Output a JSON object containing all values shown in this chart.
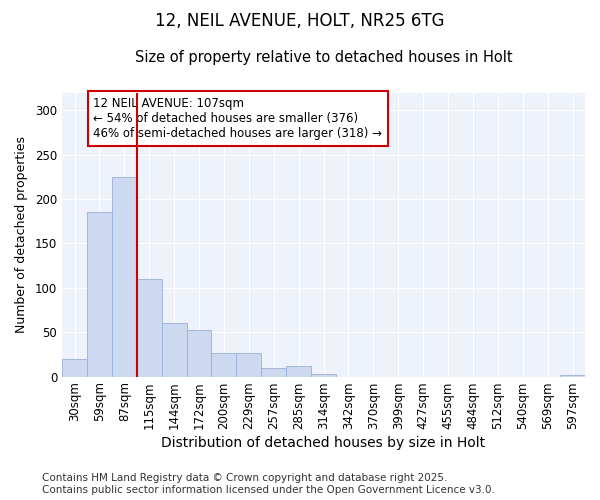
{
  "title1": "12, NEIL AVENUE, HOLT, NR25 6TG",
  "title2": "Size of property relative to detached houses in Holt",
  "xlabel": "Distribution of detached houses by size in Holt",
  "ylabel": "Number of detached properties",
  "categories": [
    "30sqm",
    "59sqm",
    "87sqm",
    "115sqm",
    "144sqm",
    "172sqm",
    "200sqm",
    "229sqm",
    "257sqm",
    "285sqm",
    "314sqm",
    "342sqm",
    "370sqm",
    "399sqm",
    "427sqm",
    "455sqm",
    "484sqm",
    "512sqm",
    "540sqm",
    "569sqm",
    "597sqm"
  ],
  "values": [
    20,
    185,
    225,
    110,
    60,
    52,
    27,
    27,
    10,
    12,
    3,
    0,
    0,
    0,
    0,
    0,
    0,
    0,
    0,
    0,
    2
  ],
  "bar_color": "#ccd9f0",
  "bar_edgecolor": "#9ab0d8",
  "vline_color": "#cc0000",
  "vline_x_idx": 2.5,
  "annotation_text": "12 NEIL AVENUE: 107sqm\n← 54% of detached houses are smaller (376)\n46% of semi-detached houses are larger (318) →",
  "annotation_box_edgecolor": "#cc0000",
  "ylim": [
    0,
    320
  ],
  "yticks": [
    0,
    50,
    100,
    150,
    200,
    250,
    300
  ],
  "background_color": "#eef2fb",
  "grid_color": "#ffffff",
  "footer": "Contains HM Land Registry data © Crown copyright and database right 2025.\nContains public sector information licensed under the Open Government Licence v3.0.",
  "title1_fontsize": 12,
  "title2_fontsize": 10.5,
  "xlabel_fontsize": 10,
  "ylabel_fontsize": 9,
  "tick_fontsize": 8.5,
  "annotation_fontsize": 8.5,
  "footer_fontsize": 7.5
}
